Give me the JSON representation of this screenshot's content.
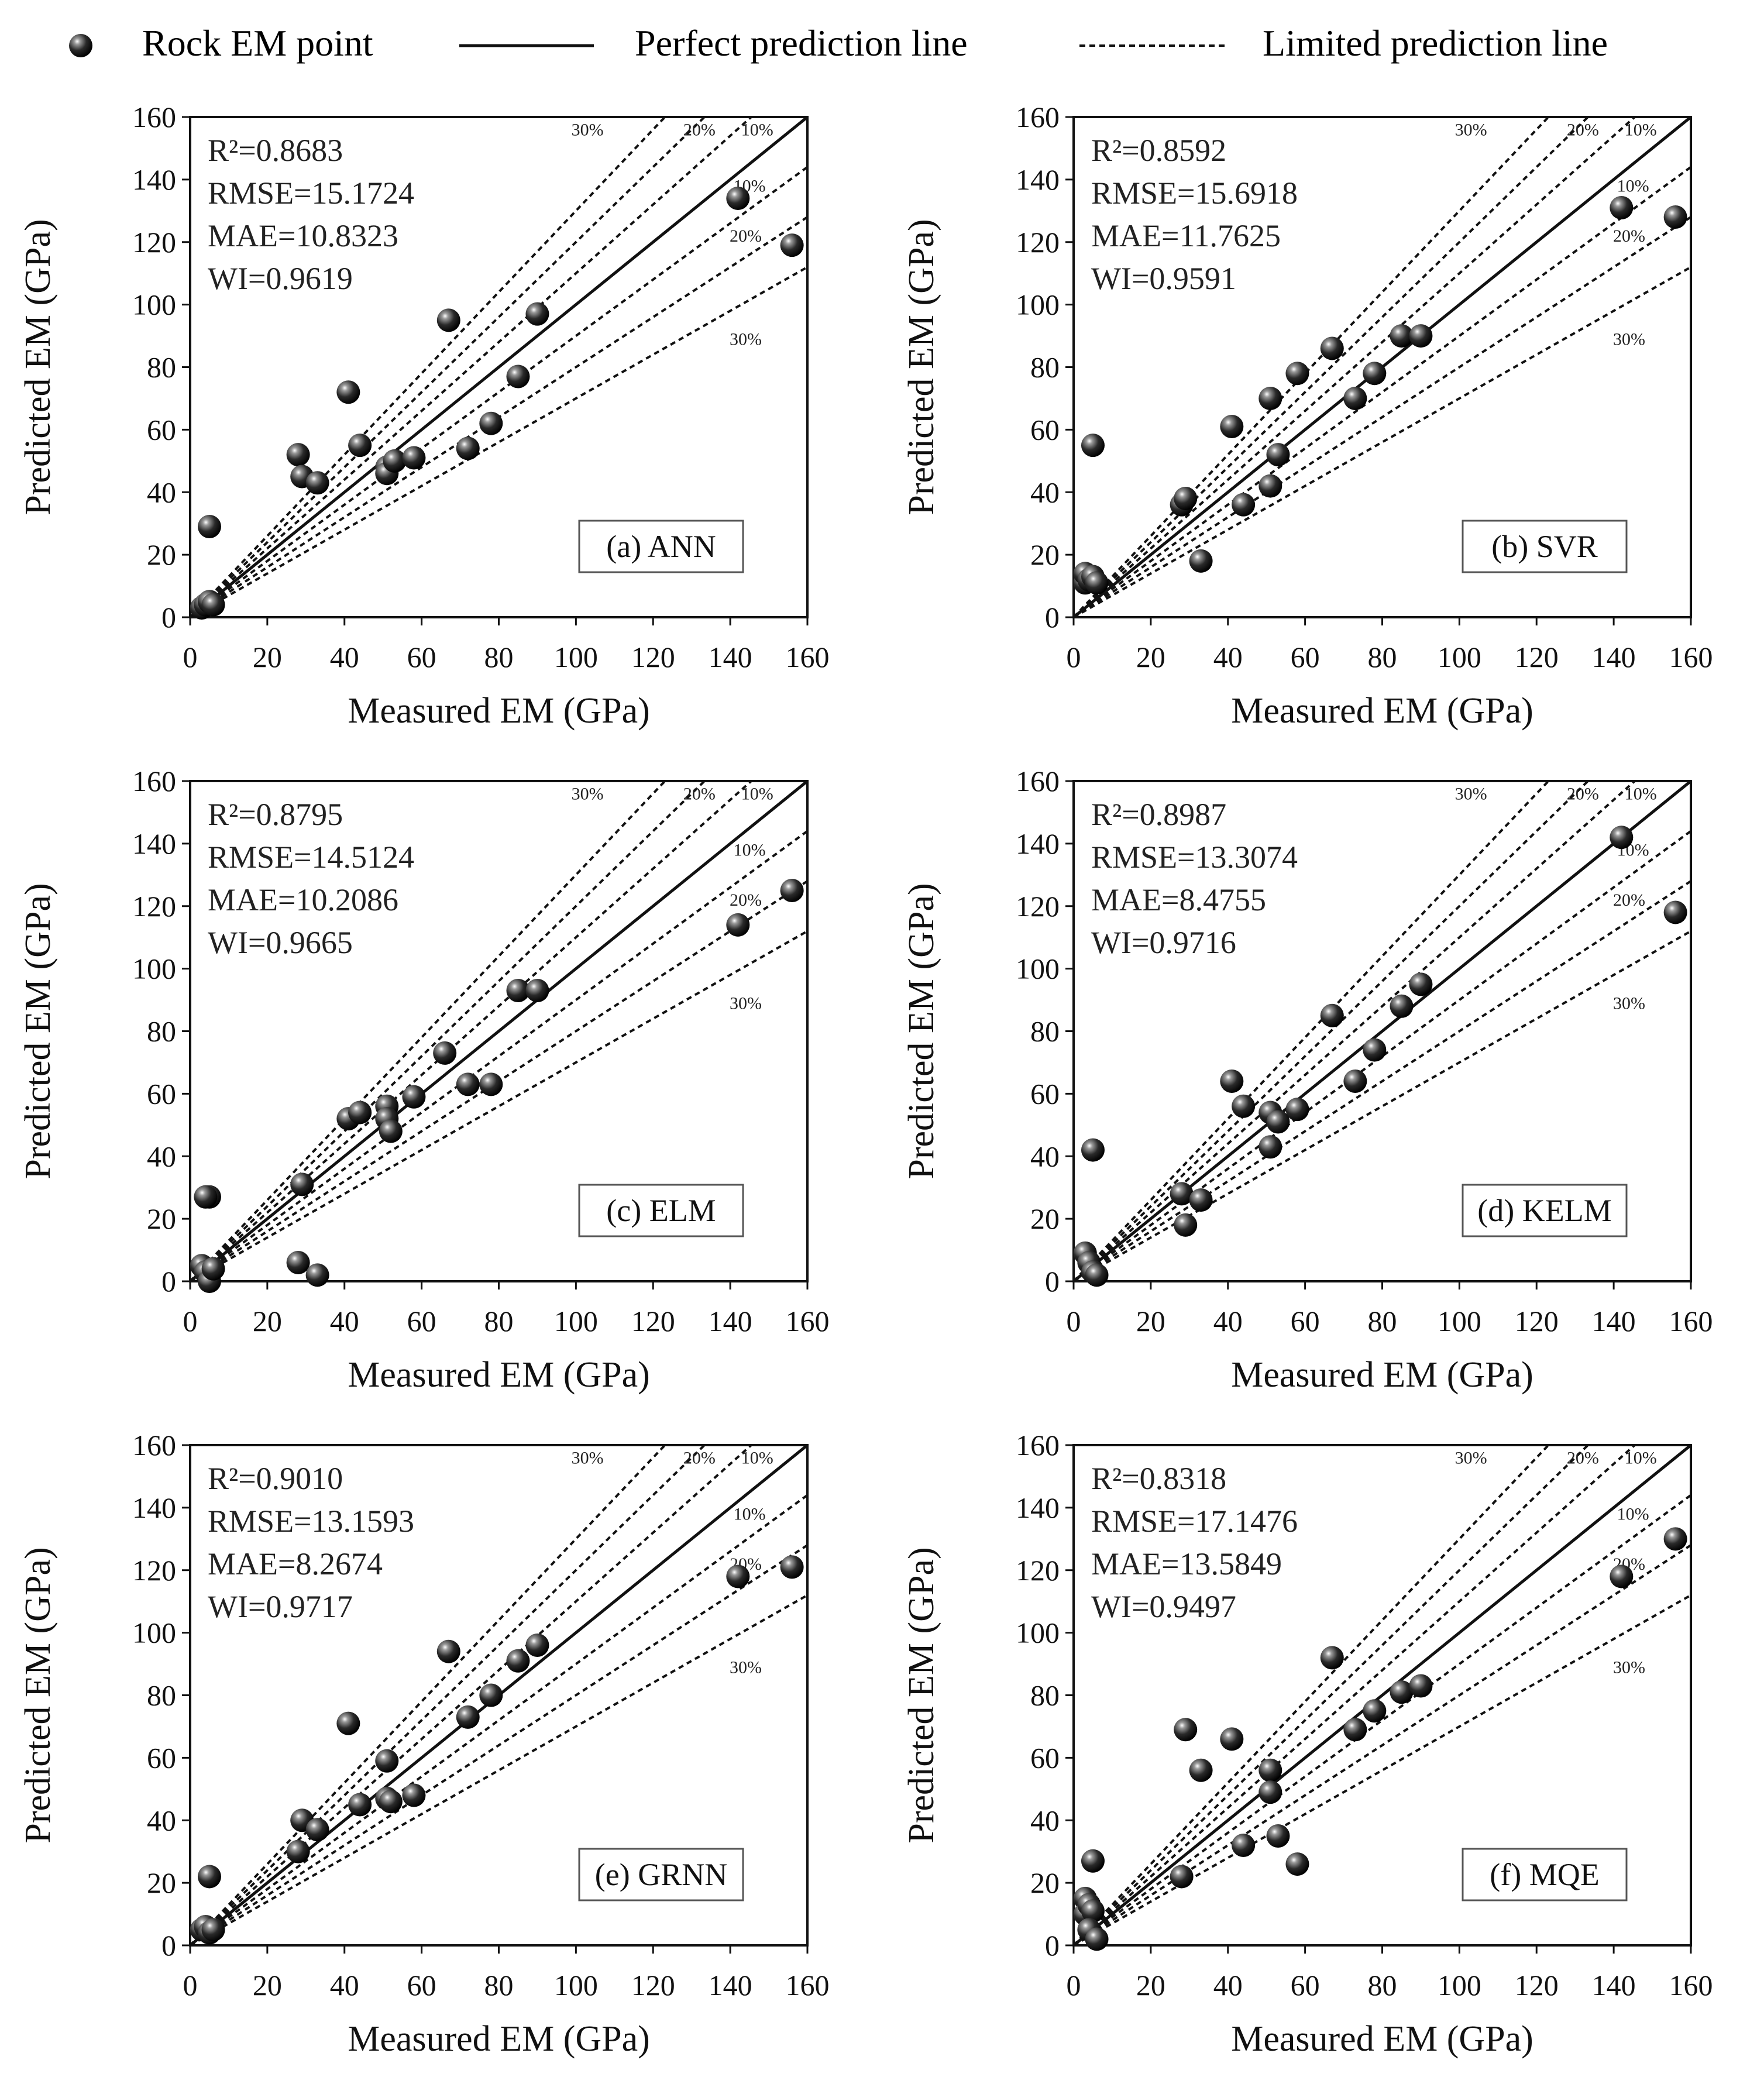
{
  "legend": {
    "point_label": "Rock EM point",
    "perfect_label": "Perfect prediction line",
    "limited_label": "Limited prediction line"
  },
  "chart_data": [
    {
      "type": "scatter",
      "panel_label": "(a) ANN",
      "metrics": [
        "R²=0.8683",
        "RMSE=15.1724",
        "MAE=10.8323",
        "WI=0.9619"
      ],
      "xlabel": "Measured EM (GPa)",
      "ylabel": "Predicted EM (GPa)",
      "xlim": [
        0,
        160
      ],
      "ylim": [
        0,
        160
      ],
      "ticks": [
        0,
        20,
        40,
        60,
        80,
        100,
        120,
        140,
        160
      ],
      "percent_labels": [
        "30%",
        "20%",
        "10%",
        "10%",
        "20%",
        "30%"
      ],
      "points": [
        [
          3,
          3
        ],
        [
          4,
          4
        ],
        [
          5,
          5
        ],
        [
          6,
          4
        ],
        [
          5,
          29
        ],
        [
          28,
          52
        ],
        [
          29,
          45
        ],
        [
          33,
          43
        ],
        [
          41,
          72
        ],
        [
          44,
          55
        ],
        [
          51,
          48
        ],
        [
          51,
          46
        ],
        [
          53,
          50
        ],
        [
          58,
          51
        ],
        [
          67,
          95
        ],
        [
          72,
          54
        ],
        [
          78,
          62
        ],
        [
          85,
          77
        ],
        [
          90,
          97
        ],
        [
          142,
          134
        ],
        [
          156,
          119
        ]
      ]
    },
    {
      "type": "scatter",
      "panel_label": "(b) SVR",
      "metrics": [
        "R²=0.8592",
        "RMSE=15.6918",
        "MAE=11.7625",
        "WI=0.9591"
      ],
      "xlabel": "Measured EM (GPa)",
      "ylabel": "Predicted EM (GPa)",
      "xlim": [
        0,
        160
      ],
      "ylim": [
        0,
        160
      ],
      "ticks": [
        0,
        20,
        40,
        60,
        80,
        100,
        120,
        140,
        160
      ],
      "percent_labels": [
        "30%",
        "20%",
        "10%",
        "10%",
        "20%",
        "30%"
      ],
      "points": [
        [
          3,
          11
        ],
        [
          3,
          14
        ],
        [
          4,
          12
        ],
        [
          5,
          13
        ],
        [
          6,
          11
        ],
        [
          5,
          55
        ],
        [
          28,
          36
        ],
        [
          29,
          38
        ],
        [
          33,
          18
        ],
        [
          41,
          61
        ],
        [
          44,
          36
        ],
        [
          51,
          70
        ],
        [
          51,
          42
        ],
        [
          53,
          52
        ],
        [
          58,
          78
        ],
        [
          67,
          86
        ],
        [
          73,
          70
        ],
        [
          78,
          78
        ],
        [
          85,
          90
        ],
        [
          90,
          90
        ],
        [
          142,
          131
        ],
        [
          156,
          128
        ]
      ]
    },
    {
      "type": "scatter",
      "panel_label": "(c) ELM",
      "metrics": [
        "R²=0.8795",
        "RMSE=14.5124",
        "MAE=10.2086",
        "WI=0.9665"
      ],
      "xlabel": "Measured EM (GPa)",
      "ylabel": "Predicted EM (GPa)",
      "xlim": [
        0,
        160
      ],
      "ylim": [
        0,
        160
      ],
      "ticks": [
        0,
        20,
        40,
        60,
        80,
        100,
        120,
        140,
        160
      ],
      "percent_labels": [
        "30%",
        "20%",
        "10%",
        "10%",
        "20%",
        "30%"
      ],
      "points": [
        [
          3,
          5
        ],
        [
          4,
          3
        ],
        [
          5,
          0
        ],
        [
          5,
          27
        ],
        [
          4,
          27
        ],
        [
          6,
          4
        ],
        [
          28,
          6
        ],
        [
          29,
          31
        ],
        [
          33,
          2
        ],
        [
          41,
          52
        ],
        [
          44,
          54
        ],
        [
          51,
          56
        ],
        [
          51,
          52
        ],
        [
          52,
          48
        ],
        [
          58,
          59
        ],
        [
          66,
          73
        ],
        [
          72,
          63
        ],
        [
          78,
          63
        ],
        [
          85,
          93
        ],
        [
          90,
          93
        ],
        [
          142,
          114
        ],
        [
          156,
          125
        ]
      ]
    },
    {
      "type": "scatter",
      "panel_label": "(d) KELM",
      "metrics": [
        "R²=0.8987",
        "RMSE=13.3074",
        "MAE=8.4755",
        "WI=0.9716"
      ],
      "xlabel": "Measured EM (GPa)",
      "ylabel": "Predicted EM (GPa)",
      "xlim": [
        0,
        160
      ],
      "ylim": [
        0,
        160
      ],
      "ticks": [
        0,
        20,
        40,
        60,
        80,
        100,
        120,
        140,
        160
      ],
      "percent_labels": [
        "30%",
        "20%",
        "10%",
        "10%",
        "20%",
        "30%"
      ],
      "points": [
        [
          3,
          9
        ],
        [
          4,
          6
        ],
        [
          5,
          3
        ],
        [
          6,
          2
        ],
        [
          5,
          42
        ],
        [
          28,
          28
        ],
        [
          29,
          18
        ],
        [
          33,
          26
        ],
        [
          41,
          64
        ],
        [
          44,
          56
        ],
        [
          51,
          54
        ],
        [
          51,
          43
        ],
        [
          53,
          51
        ],
        [
          58,
          55
        ],
        [
          67,
          85
        ],
        [
          73,
          64
        ],
        [
          78,
          74
        ],
        [
          85,
          88
        ],
        [
          90,
          95
        ],
        [
          142,
          142
        ],
        [
          156,
          118
        ]
      ]
    },
    {
      "type": "scatter",
      "panel_label": "(e) GRNN",
      "metrics": [
        "R²=0.9010",
        "RMSE=13.1593",
        "MAE=8.2674",
        "WI=0.9717"
      ],
      "xlabel": "Measured EM (GPa)",
      "ylabel": "Predicted EM (GPa)",
      "xlim": [
        0,
        160
      ],
      "ylim": [
        0,
        160
      ],
      "ticks": [
        0,
        20,
        40,
        60,
        80,
        100,
        120,
        140,
        160
      ],
      "percent_labels": [
        "30%",
        "20%",
        "10%",
        "10%",
        "20%",
        "30%"
      ],
      "points": [
        [
          3,
          5
        ],
        [
          4,
          6
        ],
        [
          5,
          4
        ],
        [
          6,
          5
        ],
        [
          5,
          22
        ],
        [
          28,
          30
        ],
        [
          29,
          40
        ],
        [
          33,
          37
        ],
        [
          41,
          71
        ],
        [
          44,
          45
        ],
        [
          51,
          59
        ],
        [
          51,
          47
        ],
        [
          52,
          46
        ],
        [
          58,
          48
        ],
        [
          67,
          94
        ],
        [
          72,
          73
        ],
        [
          78,
          80
        ],
        [
          85,
          91
        ],
        [
          90,
          96
        ],
        [
          142,
          118
        ],
        [
          156,
          121
        ]
      ]
    },
    {
      "type": "scatter",
      "panel_label": "(f) MQE",
      "metrics": [
        "R²=0.8318",
        "RMSE=17.1476",
        "MAE=13.5849",
        "WI=0.9497"
      ],
      "xlabel": "Measured EM (GPa)",
      "ylabel": "Predicted EM (GPa)",
      "xlim": [
        0,
        160
      ],
      "ylim": [
        0,
        160
      ],
      "ticks": [
        0,
        20,
        40,
        60,
        80,
        100,
        120,
        140,
        160
      ],
      "percent_labels": [
        "30%",
        "20%",
        "10%",
        "10%",
        "20%",
        "30%"
      ],
      "points": [
        [
          3,
          15
        ],
        [
          3,
          10
        ],
        [
          4,
          13
        ],
        [
          5,
          11
        ],
        [
          5,
          27
        ],
        [
          4,
          5
        ],
        [
          6,
          2
        ],
        [
          28,
          22
        ],
        [
          29,
          69
        ],
        [
          33,
          56
        ],
        [
          41,
          66
        ],
        [
          44,
          32
        ],
        [
          51,
          56
        ],
        [
          51,
          49
        ],
        [
          53,
          35
        ],
        [
          58,
          26
        ],
        [
          67,
          92
        ],
        [
          73,
          69
        ],
        [
          78,
          75
        ],
        [
          85,
          81
        ],
        [
          90,
          83
        ],
        [
          142,
          118
        ],
        [
          156,
          130
        ]
      ]
    }
  ]
}
